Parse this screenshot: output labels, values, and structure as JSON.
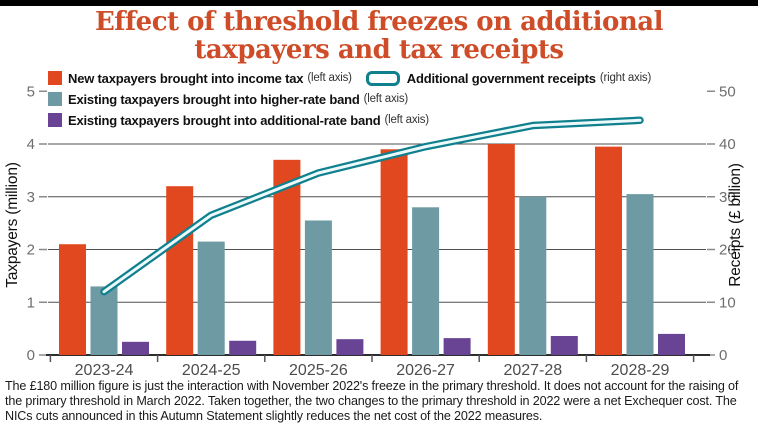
{
  "title": {
    "line1": "Effect of threshold freezes on additional",
    "line2": "taxpayers and tax receipts",
    "color": "#CE4D28"
  },
  "colors": {
    "top_bar": "#000000",
    "red_bar": "#E1481F",
    "teal_bar": "#6D9AA3",
    "purple_bar": "#6A4494",
    "line": "#11808E",
    "line_core": "#EDFAFB",
    "grid": "#4F4F4F",
    "baseline": "#2E2E2E",
    "tick_text": "#6E6E6E",
    "xlabel_text": "#4D4D4D"
  },
  "chart_data": {
    "type": "bar+line",
    "categories": [
      "2023-24",
      "2024-25",
      "2025-26",
      "2026-27",
      "2027-28",
      "2028-29"
    ],
    "series": [
      {
        "name": "New taxpayers brought into income tax",
        "axis_note": "(left axis)",
        "type": "bar",
        "axis": "left",
        "color": "#E1481F",
        "values": [
          2.1,
          3.2,
          3.7,
          3.9,
          4.0,
          3.95
        ]
      },
      {
        "name": "Existing taxpayers brought into higher-rate band",
        "axis_note": "(left axis)",
        "type": "bar",
        "axis": "left",
        "color": "#6D9AA3",
        "values": [
          1.3,
          2.15,
          2.55,
          2.8,
          3.0,
          3.05
        ]
      },
      {
        "name": "Existing taxpayers brought into additional-rate band",
        "axis_note": "(left axis)",
        "type": "bar",
        "axis": "left",
        "color": "#6A4494",
        "values": [
          0.25,
          0.27,
          0.3,
          0.32,
          0.36,
          0.4
        ]
      },
      {
        "name": "Additional government receipts",
        "axis_note": "(right axis)",
        "type": "line",
        "axis": "right",
        "color": "#11808E",
        "values": [
          12,
          26.5,
          34.5,
          39.5,
          43.5,
          44.5
        ]
      }
    ],
    "left_axis": {
      "label": "Taxpayers (million)",
      "range": [
        0,
        5
      ],
      "ticks": [
        0,
        1,
        2,
        3,
        4,
        5
      ]
    },
    "right_axis": {
      "label": "Receipts (£ billion)",
      "range": [
        0,
        50
      ],
      "ticks": [
        0,
        10,
        20,
        30,
        40,
        50
      ]
    },
    "grid": "horizontal gridlines at left-axis values 1-4",
    "legend_position": "top"
  },
  "footnote": {
    "text": "The £180 million figure is just the interaction with November 2022's freeze in the primary threshold. It does not account for the raising of the primary threshold in March 2022. Taken together, the two changes to the primary threshold in 2022 were a net Exchequer cost. The NICs cuts announced in this Autumn Statement slightly reduces the net cost of the 2022 measures."
  }
}
